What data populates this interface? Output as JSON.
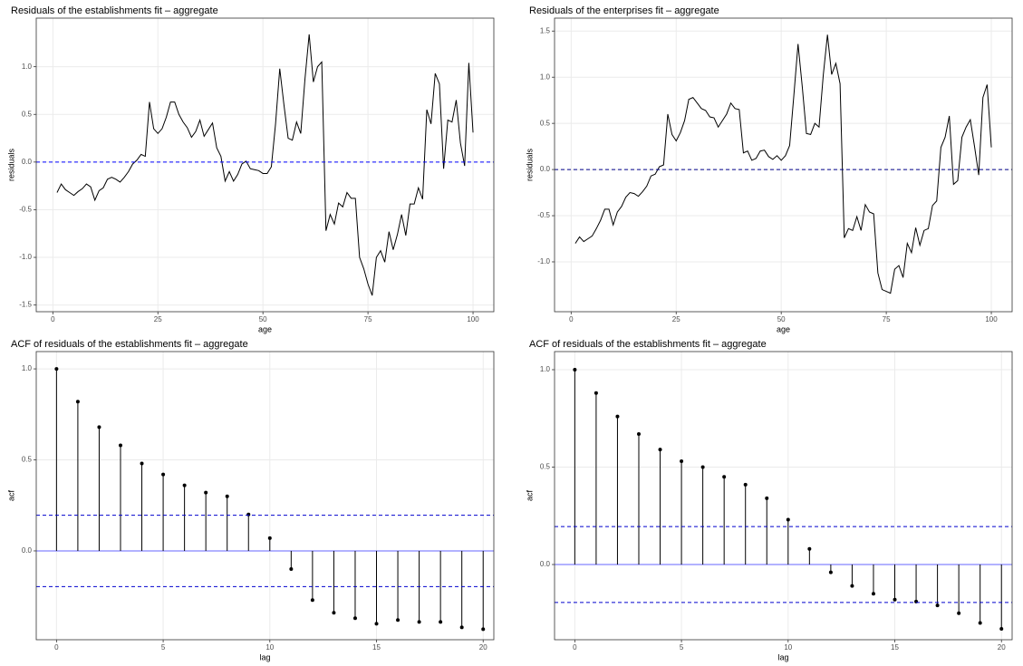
{
  "chart_data": [
    {
      "type": "line",
      "title": "Residuals of the establishments fit – aggregate",
      "x_label": "age",
      "y_label": "residuals",
      "x": [
        1,
        2,
        3,
        4,
        5,
        6,
        7,
        8,
        9,
        10,
        11,
        12,
        13,
        14,
        15,
        16,
        17,
        18,
        19,
        20,
        21,
        22,
        23,
        24,
        25,
        26,
        27,
        28,
        29,
        30,
        31,
        32,
        33,
        34,
        35,
        36,
        37,
        38,
        39,
        40,
        41,
        42,
        43,
        44,
        45,
        46,
        47,
        48,
        49,
        50,
        51,
        52,
        53,
        54,
        55,
        56,
        57,
        58,
        59,
        60,
        61,
        62,
        63,
        64,
        65,
        66,
        67,
        68,
        69,
        70,
        71,
        72,
        73,
        74,
        75,
        76,
        77,
        78,
        79,
        80,
        81,
        82,
        83,
        84,
        85,
        86,
        87,
        88,
        89,
        90,
        91,
        92,
        93,
        94,
        95,
        96,
        97,
        98,
        99,
        100
      ],
      "values": [
        -0.32,
        -0.23,
        -0.29,
        -0.32,
        -0.35,
        -0.31,
        -0.28,
        -0.23,
        -0.26,
        -0.4,
        -0.3,
        -0.27,
        -0.18,
        -0.16,
        -0.18,
        -0.21,
        -0.16,
        -0.1,
        -0.02,
        0.02,
        0.08,
        0.06,
        0.63,
        0.35,
        0.3,
        0.35,
        0.47,
        0.63,
        0.63,
        0.5,
        0.42,
        0.36,
        0.26,
        0.32,
        0.44,
        0.27,
        0.34,
        0.41,
        0.15,
        0.06,
        -0.2,
        -0.1,
        -0.2,
        -0.13,
        -0.02,
        0.01,
        -0.07,
        -0.08,
        -0.09,
        -0.12,
        -0.12,
        -0.05,
        0.4,
        0.98,
        0.6,
        0.25,
        0.23,
        0.42,
        0.3,
        0.87,
        1.34,
        0.84,
        1.0,
        1.05,
        -0.72,
        -0.55,
        -0.65,
        -0.43,
        -0.47,
        -0.32,
        -0.38,
        -0.38,
        -1.0,
        -1.12,
        -1.28,
        -1.4,
        -1.0,
        -0.93,
        -1.05,
        -0.73,
        -0.92,
        -0.76,
        -0.55,
        -0.77,
        -0.44,
        -0.44,
        -0.27,
        -0.39,
        0.55,
        0.4,
        0.93,
        0.82,
        -0.07,
        0.44,
        0.42,
        0.65,
        0.2,
        -0.04,
        1.04,
        0.31
      ],
      "color": "#000000",
      "hlines": [
        0
      ],
      "hline_color": "#0000ff",
      "xlim": [
        -3.95,
        104.95
      ],
      "xticks": [
        0,
        25,
        50,
        75,
        100
      ],
      "ylim": [
        -1.57,
        1.51
      ],
      "yticks": [
        {
          "value": -1.5,
          "label": "-1.5"
        },
        {
          "value": -1.0,
          "label": "-1.0"
        },
        {
          "value": -0.5,
          "label": "-0.5"
        },
        {
          "value": 0,
          "label": "0.0"
        },
        {
          "value": 0.5,
          "label": "0.5"
        },
        {
          "value": 1.0,
          "label": "1.0"
        }
      ],
      "grid": true
    },
    {
      "type": "line",
      "title": "Residuals of the enterprises fit – aggregate",
      "x_label": "age",
      "y_label": "residuals",
      "x": [
        1,
        2,
        3,
        4,
        5,
        6,
        7,
        8,
        9,
        10,
        11,
        12,
        13,
        14,
        15,
        16,
        17,
        18,
        19,
        20,
        21,
        22,
        23,
        24,
        25,
        26,
        27,
        28,
        29,
        30,
        31,
        32,
        33,
        34,
        35,
        36,
        37,
        38,
        39,
        40,
        41,
        42,
        43,
        44,
        45,
        46,
        47,
        48,
        49,
        50,
        51,
        52,
        53,
        54,
        55,
        56,
        57,
        58,
        59,
        60,
        61,
        62,
        63,
        64,
        65,
        66,
        67,
        68,
        69,
        70,
        71,
        72,
        73,
        74,
        75,
        76,
        77,
        78,
        79,
        80,
        81,
        82,
        83,
        84,
        85,
        86,
        87,
        88,
        89,
        90,
        91,
        92,
        93,
        94,
        95,
        96,
        97,
        98,
        99,
        100
      ],
      "values": [
        -0.8,
        -0.73,
        -0.78,
        -0.75,
        -0.72,
        -0.64,
        -0.55,
        -0.43,
        -0.43,
        -0.6,
        -0.46,
        -0.4,
        -0.3,
        -0.25,
        -0.26,
        -0.29,
        -0.24,
        -0.18,
        -0.07,
        -0.05,
        0.03,
        0.05,
        0.6,
        0.38,
        0.31,
        0.4,
        0.53,
        0.76,
        0.78,
        0.72,
        0.66,
        0.64,
        0.57,
        0.56,
        0.46,
        0.53,
        0.6,
        0.72,
        0.66,
        0.65,
        0.18,
        0.2,
        0.1,
        0.12,
        0.2,
        0.21,
        0.14,
        0.11,
        0.15,
        0.1,
        0.15,
        0.26,
        0.8,
        1.36,
        0.9,
        0.39,
        0.38,
        0.5,
        0.46,
        1.02,
        1.46,
        1.03,
        1.15,
        0.93,
        -0.74,
        -0.64,
        -0.66,
        -0.51,
        -0.66,
        -0.38,
        -0.46,
        -0.48,
        -1.12,
        -1.3,
        -1.32,
        -1.34,
        -1.08,
        -1.04,
        -1.17,
        -0.8,
        -0.9,
        -0.63,
        -0.82,
        -0.66,
        -0.64,
        -0.39,
        -0.34,
        0.24,
        0.35,
        0.58,
        -0.16,
        -0.12,
        0.35,
        0.46,
        0.54,
        0.25,
        -0.06,
        0.78,
        0.92,
        0.24
      ],
      "color": "#000000",
      "hlines": [
        0
      ],
      "hline_color": "#00008b",
      "xlim": [
        -3.95,
        104.95
      ],
      "xticks": [
        0,
        25,
        50,
        75,
        100
      ],
      "ylim": [
        -1.54,
        1.64
      ],
      "yticks": [
        {
          "value": -1.0,
          "label": "-1.0"
        },
        {
          "value": -0.5,
          "label": "-0.5"
        },
        {
          "value": 0,
          "label": "0.0"
        },
        {
          "value": 0.5,
          "label": "0.5"
        },
        {
          "value": 1.0,
          "label": "1.0"
        },
        {
          "value": 1.5,
          "label": "1.5"
        }
      ],
      "grid": true
    },
    {
      "type": "stem",
      "title": "ACF of residuals of the establishments fit – aggregate",
      "x_label": "lag",
      "y_label": "acf",
      "x": [
        0,
        1,
        2,
        3,
        4,
        5,
        6,
        7,
        8,
        9,
        10,
        11,
        12,
        13,
        14,
        15,
        16,
        17,
        18,
        19,
        20
      ],
      "values": [
        1.0,
        0.82,
        0.68,
        0.58,
        0.48,
        0.42,
        0.36,
        0.32,
        0.3,
        0.2,
        0.07,
        -0.1,
        -0.27,
        -0.34,
        -0.37,
        -0.4,
        -0.38,
        -0.39,
        -0.39,
        -0.42,
        -0.43
      ],
      "color": "#000000",
      "zero_line": 0,
      "zero_color": "#6666ff",
      "hlines": [
        0.196,
        -0.196
      ],
      "hline_color": "#0000cd",
      "xlim": [
        -0.95,
        20.5
      ],
      "xticks": [
        0,
        5,
        10,
        15,
        20
      ],
      "ylim": [
        -0.488,
        1.095
      ],
      "yticks": [
        {
          "value": 0,
          "label": "0.0"
        },
        {
          "value": 0.5,
          "label": "0.5"
        },
        {
          "value": 1.0,
          "label": "1.0"
        }
      ],
      "grid": true
    },
    {
      "type": "stem",
      "title": "ACF of residuals of the establishments fit – aggregate",
      "x_label": "lag",
      "y_label": "acf",
      "x": [
        0,
        1,
        2,
        3,
        4,
        5,
        6,
        7,
        8,
        9,
        10,
        11,
        12,
        13,
        14,
        15,
        16,
        17,
        18,
        19,
        20
      ],
      "values": [
        1.0,
        0.88,
        0.76,
        0.67,
        0.59,
        0.53,
        0.5,
        0.45,
        0.41,
        0.34,
        0.23,
        0.08,
        -0.04,
        -0.11,
        -0.15,
        -0.18,
        -0.19,
        -0.21,
        -0.25,
        -0.3,
        -0.33
      ],
      "color": "#000000",
      "zero_line": 0,
      "zero_color": "#6666ff",
      "hlines": [
        0.195,
        -0.195
      ],
      "hline_color": "#0000cd",
      "xlim": [
        -0.95,
        20.5
      ],
      "xticks": [
        0,
        5,
        10,
        15,
        20
      ],
      "ylim": [
        -0.386,
        1.093
      ],
      "yticks": [
        {
          "value": 0,
          "label": "0.0"
        },
        {
          "value": 0.5,
          "label": "0.5"
        },
        {
          "value": 1.0,
          "label": "1.0"
        }
      ],
      "grid": true
    }
  ]
}
